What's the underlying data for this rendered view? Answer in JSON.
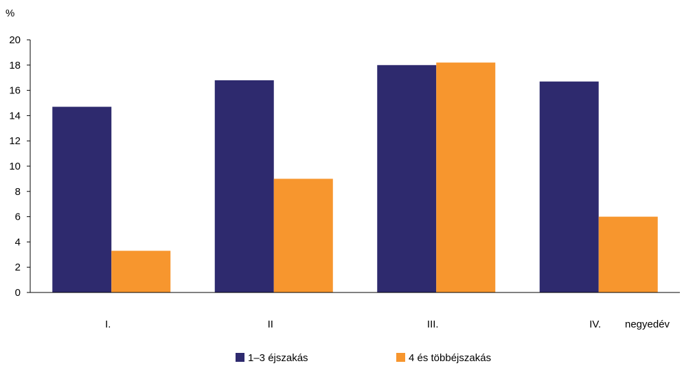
{
  "chart_data": {
    "type": "bar",
    "y_unit_label": "%",
    "categories": [
      "I.",
      "II",
      "III.",
      "IV."
    ],
    "x_axis_suffix": "negyedév",
    "ylim": [
      0,
      20
    ],
    "y_ticks": [
      0,
      2,
      4,
      6,
      8,
      10,
      12,
      14,
      16,
      18,
      20
    ],
    "grid": false,
    "legend_position": "bottom-center",
    "series": [
      {
        "name": "1–3 éjszakás",
        "color": "#2e2a6e",
        "values": [
          14.7,
          16.8,
          18.0,
          16.7
        ]
      },
      {
        "name": "4 és többéjszakás",
        "color": "#f7962e",
        "values": [
          3.3,
          9.0,
          18.2,
          6.0
        ]
      }
    ]
  }
}
